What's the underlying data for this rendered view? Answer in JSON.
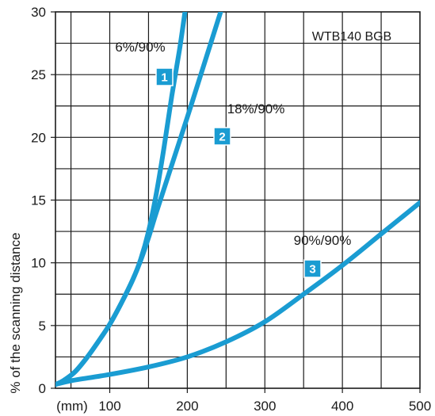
{
  "chart_data": {
    "type": "line",
    "annotation": "WTB140 BGB",
    "xlabel": "(mm)",
    "ylabel": "% of the scanning distance",
    "xlim": [
      30,
      500
    ],
    "ylim": [
      0,
      30
    ],
    "x_ticks": [
      100,
      200,
      300,
      400,
      500
    ],
    "y_ticks": [
      0,
      5,
      10,
      15,
      20,
      25,
      30
    ],
    "grid": true,
    "line_color": "#1a9cd2",
    "badge_color": "#1a9cd2",
    "series": [
      {
        "name": "6%/90%",
        "badge": "1",
        "points": [
          [
            30,
            0.3
          ],
          [
            40,
            0.6
          ],
          [
            55,
            1.3
          ],
          [
            70,
            2.4
          ],
          [
            85,
            3.7
          ],
          [
            100,
            5.1
          ],
          [
            115,
            6.8
          ],
          [
            130,
            8.7
          ],
          [
            140,
            10.3
          ],
          [
            150,
            12.5
          ],
          [
            160,
            15.5
          ],
          [
            170,
            19.2
          ],
          [
            180,
            23.3
          ],
          [
            190,
            27.0
          ],
          [
            197,
            30.0
          ]
        ]
      },
      {
        "name": "18%/90%",
        "badge": "2",
        "points": [
          [
            30,
            0.3
          ],
          [
            40,
            0.6
          ],
          [
            55,
            1.3
          ],
          [
            70,
            2.4
          ],
          [
            85,
            3.7
          ],
          [
            100,
            5.1
          ],
          [
            115,
            6.8
          ],
          [
            130,
            8.7
          ],
          [
            140,
            10.2
          ],
          [
            150,
            12.0
          ],
          [
            160,
            14.0
          ],
          [
            180,
            17.8
          ],
          [
            200,
            21.6
          ],
          [
            220,
            25.5
          ],
          [
            243,
            30.0
          ]
        ]
      },
      {
        "name": "90%/90%",
        "badge": "3",
        "points": [
          [
            30,
            0.3
          ],
          [
            50,
            0.6
          ],
          [
            100,
            1.1
          ],
          [
            150,
            1.7
          ],
          [
            200,
            2.5
          ],
          [
            250,
            3.7
          ],
          [
            300,
            5.3
          ],
          [
            350,
            7.5
          ],
          [
            400,
            9.8
          ],
          [
            450,
            12.3
          ],
          [
            500,
            14.8
          ]
        ]
      }
    ]
  }
}
